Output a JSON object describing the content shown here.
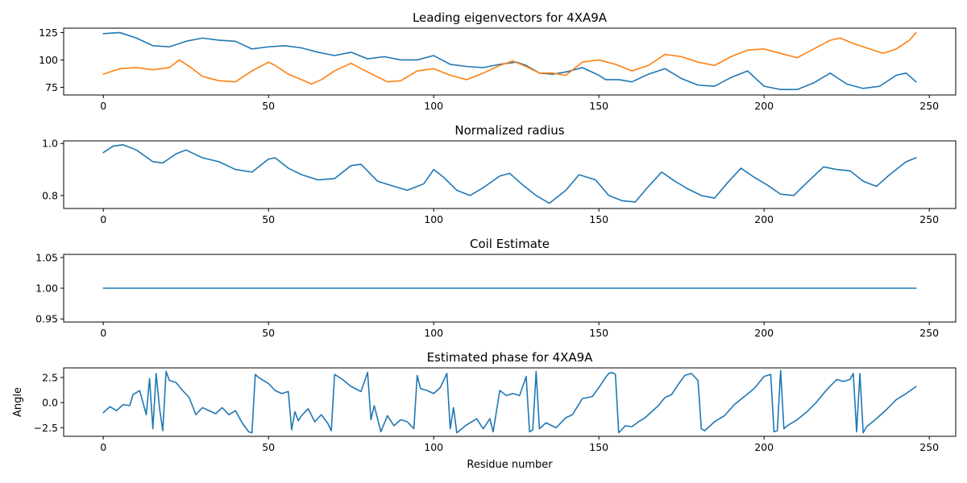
{
  "chart_data": [
    {
      "type": "line",
      "title": "Leading eigenvectors for 4XA9A",
      "xlabel": "",
      "ylabel": "",
      "xlim": [
        -12,
        258
      ],
      "ylim": [
        68,
        129
      ],
      "xticks": [
        0,
        50,
        100,
        150,
        200,
        250
      ],
      "yticks": [
        75,
        100,
        125
      ],
      "series": [
        {
          "color": "#1f77b4",
          "x": [
            0,
            5,
            10,
            15,
            20,
            25,
            30,
            35,
            40,
            45,
            50,
            55,
            60,
            65,
            70,
            75,
            80,
            85,
            90,
            95,
            100,
            105,
            110,
            115,
            120,
            125,
            128,
            132,
            136,
            140,
            145,
            150,
            152,
            156,
            160,
            165,
            170,
            175,
            180,
            185,
            190,
            195,
            200,
            205,
            210,
            215,
            220,
            225,
            230,
            235,
            240,
            243,
            246
          ],
          "y": [
            124,
            125,
            120,
            113,
            112,
            117,
            120,
            118,
            117,
            110,
            112,
            113,
            111,
            107,
            104,
            107,
            101,
            103,
            100,
            100,
            104,
            96,
            94,
            93,
            96,
            98,
            95,
            88,
            87,
            89,
            93,
            86,
            82,
            82,
            80,
            87,
            92,
            83,
            77,
            76,
            84,
            90,
            76,
            73,
            73,
            79,
            88,
            78,
            74,
            76,
            86,
            88,
            80
          ]
        },
        {
          "color": "#ff7f0e",
          "x": [
            0,
            5,
            10,
            15,
            20,
            23,
            27,
            30,
            35,
            40,
            45,
            50,
            52,
            56,
            60,
            63,
            66,
            70,
            75,
            78,
            82,
            86,
            90,
            95,
            100,
            105,
            110,
            115,
            120,
            124,
            128,
            132,
            136,
            140,
            145,
            150,
            155,
            160,
            165,
            170,
            175,
            180,
            185,
            190,
            195,
            200,
            205,
            210,
            215,
            220,
            223,
            227,
            232,
            236,
            240,
            244,
            246
          ],
          "y": [
            87,
            92,
            93,
            91,
            93,
            100,
            92,
            85,
            81,
            80,
            90,
            98,
            95,
            87,
            82,
            78,
            82,
            90,
            97,
            92,
            86,
            80,
            81,
            90,
            92,
            86,
            82,
            88,
            95,
            99,
            94,
            88,
            88,
            86,
            98,
            100,
            96,
            90,
            95,
            105,
            103,
            98,
            95,
            103,
            109,
            110,
            106,
            102,
            110,
            118,
            120,
            115,
            110,
            106,
            110,
            118,
            125
          ]
        }
      ]
    },
    {
      "type": "line",
      "title": "Normalized radius",
      "xlabel": "",
      "ylabel": "",
      "xlim": [
        -12,
        258
      ],
      "ylim": [
        0.75,
        1.01
      ],
      "xticks": [
        0,
        50,
        100,
        150,
        200,
        250
      ],
      "yticks": [
        0.8,
        1.0
      ],
      "series": [
        {
          "color": "#1f77b4",
          "x": [
            0,
            3,
            6,
            10,
            15,
            18,
            22,
            25,
            30,
            35,
            40,
            45,
            50,
            52,
            56,
            60,
            65,
            70,
            75,
            78,
            83,
            88,
            92,
            97,
            100,
            103,
            107,
            111,
            115,
            120,
            123,
            127,
            131,
            135,
            140,
            144,
            149,
            153,
            157,
            161,
            165,
            169,
            173,
            177,
            181,
            185,
            189,
            193,
            197,
            201,
            205,
            209,
            213,
            218,
            222,
            226,
            230,
            234,
            238,
            243,
            246
          ],
          "y": [
            0.965,
            0.99,
            0.995,
            0.975,
            0.93,
            0.925,
            0.96,
            0.975,
            0.945,
            0.93,
            0.9,
            0.89,
            0.94,
            0.945,
            0.905,
            0.88,
            0.86,
            0.865,
            0.915,
            0.92,
            0.855,
            0.835,
            0.82,
            0.845,
            0.9,
            0.87,
            0.82,
            0.8,
            0.83,
            0.875,
            0.885,
            0.84,
            0.8,
            0.77,
            0.82,
            0.88,
            0.86,
            0.8,
            0.78,
            0.775,
            0.835,
            0.89,
            0.855,
            0.825,
            0.8,
            0.79,
            0.85,
            0.905,
            0.87,
            0.84,
            0.805,
            0.8,
            0.85,
            0.91,
            0.9,
            0.895,
            0.855,
            0.835,
            0.88,
            0.93,
            0.945
          ]
        }
      ]
    },
    {
      "type": "line",
      "title": "Coil Estimate",
      "xlabel": "",
      "ylabel": "",
      "xlim": [
        -12,
        258
      ],
      "ylim": [
        0.945,
        1.055
      ],
      "xticks": [
        0,
        50,
        100,
        150,
        200,
        250
      ],
      "yticks": [
        0.95,
        1.0,
        1.05
      ],
      "series": [
        {
          "color": "#1f77b4",
          "x": [
            0,
            246
          ],
          "y": [
            1.0,
            1.0
          ]
        }
      ]
    },
    {
      "type": "line",
      "title": "Estimated phase for 4XA9A",
      "xlabel": "Residue number",
      "ylabel": "Angle",
      "xlim": [
        -12,
        258
      ],
      "ylim": [
        -3.35,
        3.45
      ],
      "xticks": [
        0,
        50,
        100,
        150,
        200,
        250
      ],
      "yticks": [
        -2.5,
        0.0,
        2.5
      ],
      "series": [
        {
          "color": "#1f77b4",
          "x": [
            0,
            2,
            4,
            6,
            8,
            9,
            11,
            13,
            14,
            15,
            16,
            17,
            18,
            19,
            20,
            22,
            24,
            26,
            28,
            30,
            32,
            34,
            36,
            38,
            40,
            42,
            44,
            45,
            46,
            47,
            48,
            50,
            52,
            54,
            56,
            57,
            58,
            59,
            60,
            62,
            64,
            66,
            68,
            69,
            70,
            72,
            75,
            78,
            80,
            81,
            82,
            84,
            86,
            88,
            90,
            92,
            94,
            95,
            96,
            98,
            100,
            102,
            104,
            105,
            106,
            107,
            110,
            113,
            115,
            117,
            118,
            120,
            122,
            124,
            126,
            128,
            129,
            130,
            131,
            132,
            134,
            137,
            140,
            142,
            145,
            148,
            150,
            152,
            153,
            154,
            155,
            156,
            158,
            160,
            162,
            164,
            166,
            168,
            170,
            172,
            174,
            176,
            178,
            180,
            181,
            182,
            185,
            188,
            191,
            194,
            197,
            200,
            202,
            203,
            204,
            205,
            206,
            207,
            210,
            213,
            216,
            219,
            222,
            224,
            226,
            227,
            228,
            229,
            230,
            231,
            234,
            237,
            240,
            243,
            246
          ],
          "y": [
            -1,
            -0.4,
            -0.8,
            -0.2,
            -0.3,
            0.8,
            1.2,
            -1.2,
            2.4,
            -2.6,
            2.9,
            -0.5,
            -2.8,
            3.1,
            2.2,
            2,
            1.2,
            0.5,
            -1.2,
            -0.5,
            -0.8,
            -1.1,
            -0.5,
            -1.2,
            -0.8,
            -2,
            -2.9,
            -3,
            2.8,
            2.5,
            2.3,
            1.9,
            1.2,
            0.9,
            1.1,
            -2.7,
            -0.9,
            -1.8,
            -1.3,
            -0.6,
            -1.9,
            -1.2,
            -2.1,
            -2.8,
            2.8,
            2.4,
            1.6,
            1.1,
            3,
            -1.7,
            -0.3,
            -2.9,
            -1.3,
            -2.3,
            -1.7,
            -1.9,
            -2.6,
            2.7,
            1.4,
            1.2,
            0.9,
            1.5,
            2.9,
            -2.6,
            -0.5,
            -3,
            -2.2,
            -1.6,
            -2.6,
            -1.6,
            -2.9,
            1.2,
            0.7,
            0.9,
            0.7,
            2.6,
            -2.9,
            -2.7,
            3.1,
            -2.6,
            -2,
            -2.5,
            -1.5,
            -1.2,
            0.4,
            0.6,
            1.5,
            2.5,
            2.9,
            3,
            2.8,
            -3,
            -2.3,
            -2.4,
            -1.9,
            -1.5,
            -0.9,
            -0.3,
            0.5,
            0.8,
            1.8,
            2.7,
            2.9,
            2.2,
            -2.6,
            -2.8,
            -1.9,
            -1.3,
            -0.2,
            0.6,
            1.4,
            2.6,
            2.8,
            -2.9,
            -2.8,
            3.2,
            -2.6,
            -2.3,
            -1.7,
            -0.9,
            0.1,
            1.3,
            2.3,
            2.1,
            2.3,
            2.9,
            -2.9,
            2.9,
            -3,
            -2.4,
            -1.6,
            -0.7,
            0.3,
            0.9,
            1.6
          ]
        }
      ]
    }
  ]
}
